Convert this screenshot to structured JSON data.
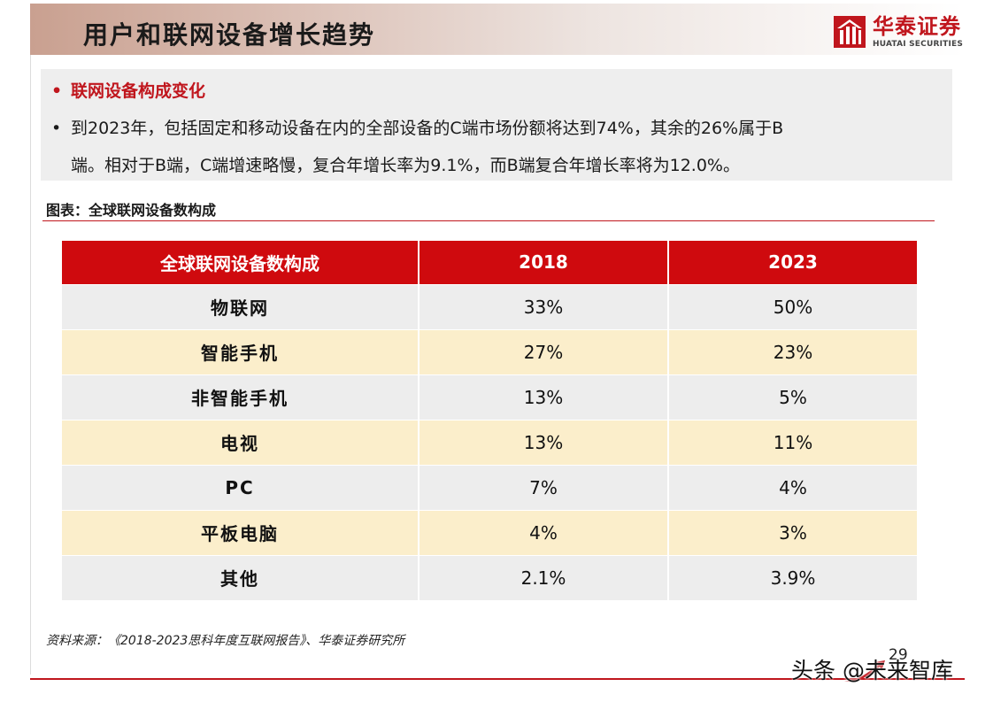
{
  "header": {
    "title": "用户和联网设备增长趋势",
    "logo_cn": "华泰证券",
    "logo_en": "HUATAI SECURITIES",
    "brand_color": "#c0161d"
  },
  "summary": {
    "heading": "联网设备构成变化",
    "paragraph_line1": "到2023年，包括固定和移动设备在内的全部设备的C端市场份额将达到74%，其余的26%属于B",
    "paragraph_line2": "端。相对于B端，C端增速略慢，复合年增长率为9.1%，而B端复合年增长率将为12.0%。",
    "bullet": "•"
  },
  "figure": {
    "label": "图表：全球联网设备数构成"
  },
  "table": {
    "headers": [
      "全球联网设备数构成",
      "2018",
      "2023"
    ],
    "rows": [
      [
        "物联网",
        "33%",
        "50%"
      ],
      [
        "智能手机",
        "27%",
        "23%"
      ],
      [
        "非智能手机",
        "13%",
        "5%"
      ],
      [
        "电视",
        "13%",
        "11%"
      ],
      [
        "PC",
        "7%",
        "4%"
      ],
      [
        "平板电脑",
        "4%",
        "3%"
      ],
      [
        "其他",
        "2.1%",
        "3.9%"
      ]
    ],
    "header_color": "#cf0a0e",
    "row_colors": [
      "#ededed",
      "#fbeecb"
    ]
  },
  "footer": {
    "source": "资料来源：《2018-2023思科年度互联网报告》、华泰证券研究所",
    "page_number": "29",
    "watermark": "头条 @未来智库"
  }
}
